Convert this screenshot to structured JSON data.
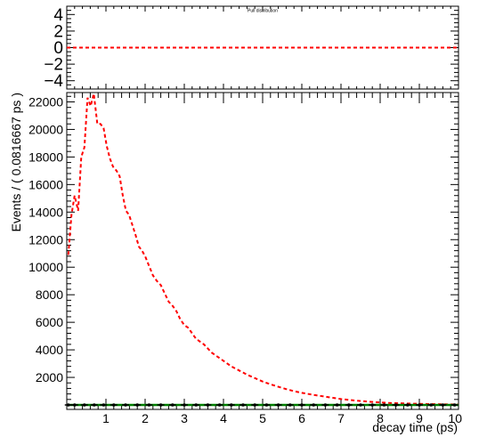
{
  "chart_data": [
    {
      "type": "line",
      "title": "Pull distribution",
      "xlabel": "",
      "ylabel": "",
      "xlim": [
        0,
        10
      ],
      "ylim": [
        -5,
        5
      ],
      "yticks": [
        "4",
        "2",
        "0",
        "−2",
        "−4"
      ],
      "yticks_values": [
        4,
        2,
        0,
        -2,
        -4
      ],
      "series": [
        {
          "values_x": [
            0,
            10
          ],
          "values_y": [
            0,
            0
          ],
          "color": "#ff0000",
          "style": "dashed"
        }
      ]
    },
    {
      "type": "line",
      "title": "",
      "xlabel": "decay time (ps)",
      "ylabel": "Events / ( 0.0816667 ps )",
      "xlim": [
        0,
        10
      ],
      "ylim": [
        0,
        23000
      ],
      "xticks": [
        "1",
        "2",
        "3",
        "4",
        "5",
        "6",
        "7",
        "8",
        "9",
        "10"
      ],
      "xticks_values": [
        1,
        2,
        3,
        4,
        5,
        6,
        7,
        8,
        9,
        10
      ],
      "yticks": [
        "2000",
        "4000",
        "6000",
        "8000",
        "10000",
        "12000",
        "14000",
        "16000",
        "18000",
        "20000",
        "22000"
      ],
      "yticks_values": [
        2000,
        4000,
        6000,
        8000,
        10000,
        12000,
        14000,
        16000,
        18000,
        20000,
        22000
      ],
      "series": [
        {
          "color": "#ff0000",
          "style": "dashed",
          "x": [
            0.04,
            0.12,
            0.2,
            0.29,
            0.37,
            0.45,
            0.53,
            0.61,
            0.69,
            0.78,
            0.86,
            0.94,
            1.02,
            1.1,
            1.18,
            1.27,
            1.35,
            1.43,
            1.51,
            1.59,
            1.67,
            1.76,
            1.84,
            1.92,
            2.0,
            2.1,
            2.2,
            2.3,
            2.4,
            2.5,
            2.6,
            2.7,
            2.8,
            2.9,
            3.0,
            3.1,
            3.2,
            3.3,
            3.4,
            3.5,
            3.6,
            3.7,
            3.8,
            3.9,
            4.0,
            4.2,
            4.4,
            4.6,
            4.8,
            5.0,
            5.2,
            5.4,
            5.6,
            5.8,
            6.0,
            6.3,
            6.6,
            7.0,
            7.4,
            7.8,
            8.2,
            8.6,
            9.0,
            9.4,
            9.8,
            10.0
          ],
          "y": [
            10900,
            13800,
            15200,
            14100,
            18000,
            18700,
            22300,
            21700,
            22600,
            20400,
            20400,
            20100,
            18800,
            17900,
            17300,
            17000,
            16600,
            15200,
            14100,
            13800,
            13100,
            12300,
            11500,
            11200,
            10800,
            10100,
            9400,
            9000,
            8700,
            8100,
            7500,
            7200,
            6800,
            6200,
            5800,
            5600,
            5200,
            4800,
            4600,
            4400,
            4100,
            3800,
            3600,
            3400,
            3200,
            2800,
            2500,
            2200,
            1950,
            1700,
            1500,
            1320,
            1150,
            1000,
            880,
            730,
            600,
            430,
            310,
            220,
            150,
            110,
            80,
            60,
            40,
            35
          ]
        },
        {
          "color": "#008000",
          "style": "solid",
          "x": [
            0,
            10
          ],
          "y": [
            0,
            0
          ]
        },
        {
          "color": "#000000",
          "style": "points",
          "x": [
            0.04,
            0.2,
            0.45,
            0.7,
            0.94,
            1.2,
            1.5,
            1.8,
            2.1,
            2.4,
            2.7,
            3.0,
            3.3,
            3.6,
            3.9,
            4.2,
            4.5,
            4.8,
            5.1,
            5.4,
            5.7,
            6.0,
            6.3,
            6.6,
            6.9,
            7.2,
            7.5,
            7.8,
            8.1,
            8.4,
            8.7,
            9.0,
            9.3,
            9.6,
            9.9
          ],
          "y": [
            0,
            0,
            0,
            0,
            0,
            0,
            0,
            0,
            0,
            0,
            0,
            0,
            0,
            0,
            0,
            0,
            0,
            0,
            0,
            0,
            0,
            0,
            0,
            0,
            0,
            0,
            0,
            0,
            0,
            0,
            0,
            0,
            0,
            0,
            0
          ]
        }
      ]
    }
  ]
}
